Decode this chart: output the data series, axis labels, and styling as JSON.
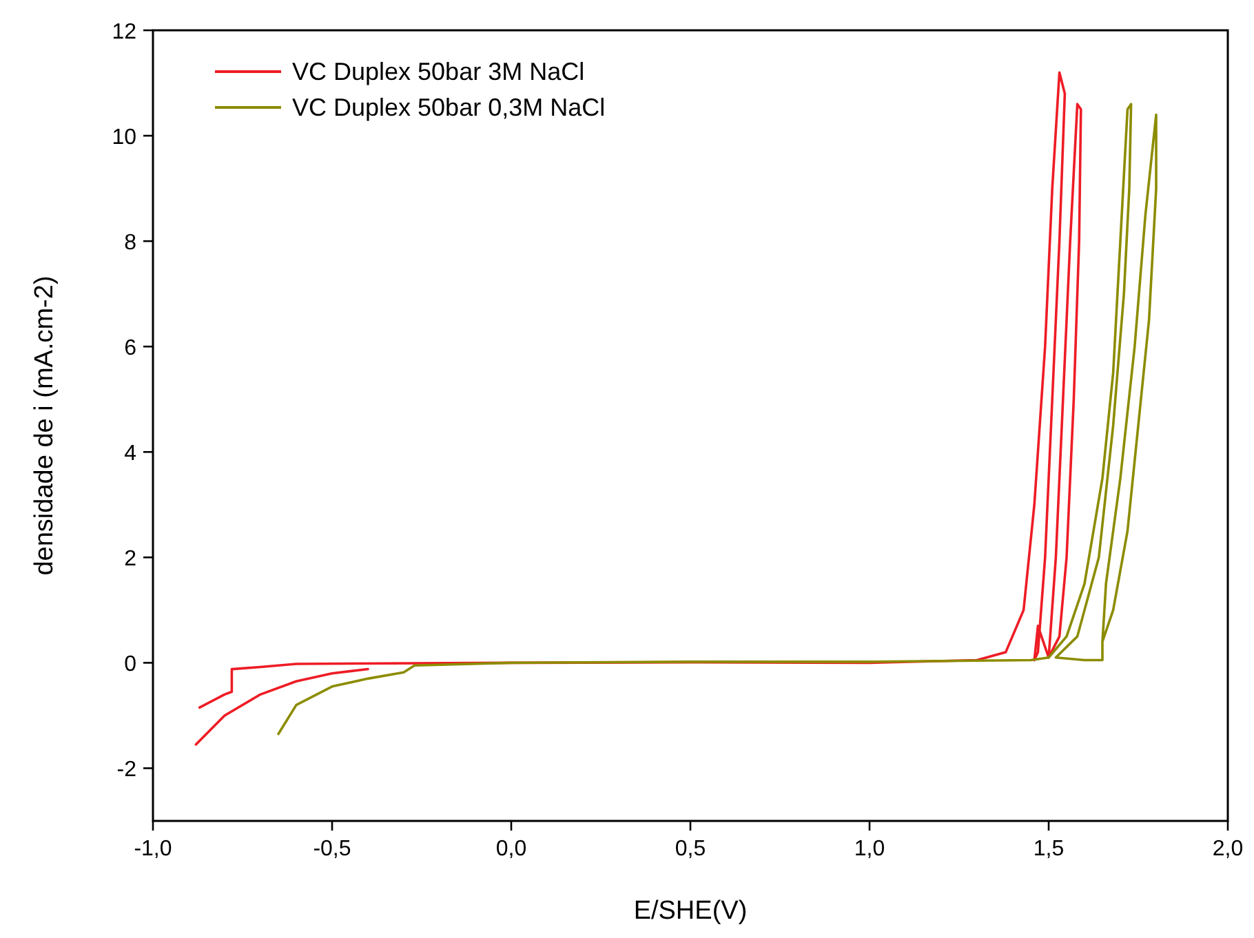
{
  "chart_data": {
    "type": "line",
    "xlabel": "E/SHE(V)",
    "ylabel": "densidade de i  (mA.cm-2)",
    "xlim": [
      -1,
      2
    ],
    "ylim": [
      -3,
      12
    ],
    "xticks": [
      {
        "value": -1,
        "label": "-1,0"
      },
      {
        "value": -0.5,
        "label": "-0,5"
      },
      {
        "value": 0,
        "label": "0,0"
      },
      {
        "value": 0.5,
        "label": "0,5"
      },
      {
        "value": 1,
        "label": "1,0"
      },
      {
        "value": 1.5,
        "label": "1,5"
      },
      {
        "value": 2,
        "label": "2,0"
      }
    ],
    "yticks": [
      -2,
      0,
      2,
      4,
      6,
      8,
      10,
      12
    ],
    "grid": false,
    "legend": "top left",
    "marker": "none",
    "line_style": "solid",
    "series": [
      {
        "name": "VC Duplex 50bar 3M NaCl",
        "color": "#ee1c25",
        "x": [
          -0.88,
          -0.8,
          -0.7,
          -0.6,
          -0.5,
          -0.4,
          null,
          -0.87,
          -0.8,
          -0.78,
          -0.78,
          -0.7,
          -0.6,
          0,
          0.5,
          1.0,
          1.3,
          1.38,
          1.43,
          1.46,
          1.49,
          1.51,
          1.53,
          1.545,
          1.53,
          1.51,
          1.49,
          1.47,
          1.46,
          1.47,
          1.5,
          1.52,
          1.54,
          1.56,
          1.58,
          1.59,
          1.585,
          1.57,
          1.55,
          1.53,
          1.5
        ],
        "values": [
          -1.55,
          -1.0,
          -0.6,
          -0.35,
          -0.2,
          -0.12,
          null,
          -0.85,
          -0.6,
          -0.55,
          -0.12,
          -0.08,
          -0.02,
          0,
          0.01,
          0,
          0.05,
          0.2,
          1,
          3,
          6,
          9,
          11.2,
          10.8,
          8,
          5,
          2,
          0.2,
          0.05,
          0.7,
          0.1,
          2,
          5,
          8,
          10.6,
          10.5,
          8,
          5,
          2,
          0.5,
          0.1
        ]
      },
      {
        "name": "VC Duplex 50bar 0,3M NaCl",
        "color": "#8c8c00",
        "x": [
          -0.65,
          -0.6,
          -0.5,
          -0.4,
          -0.3,
          -0.27,
          0,
          0.5,
          1.0,
          1.45,
          1.5,
          1.55,
          1.6,
          1.65,
          1.68,
          1.7,
          1.72,
          1.73,
          1.725,
          1.71,
          1.68,
          1.64,
          1.58,
          1.52,
          1.6,
          1.65,
          1.65,
          1.66,
          1.7,
          1.74,
          1.77,
          1.8,
          1.8,
          1.78,
          1.75,
          1.72,
          1.68,
          1.65
        ],
        "values": [
          -1.35,
          -0.8,
          -0.45,
          -0.3,
          -0.18,
          -0.05,
          0,
          0.02,
          0.02,
          0.05,
          0.1,
          0.5,
          1.5,
          3.5,
          5.5,
          8,
          10.5,
          10.6,
          9,
          7,
          4.5,
          2,
          0.5,
          0.1,
          0.05,
          0.05,
          0.4,
          1.5,
          3.5,
          6,
          8.5,
          10.4,
          9,
          6.5,
          4.5,
          2.5,
          1.0,
          0.4
        ]
      }
    ]
  }
}
